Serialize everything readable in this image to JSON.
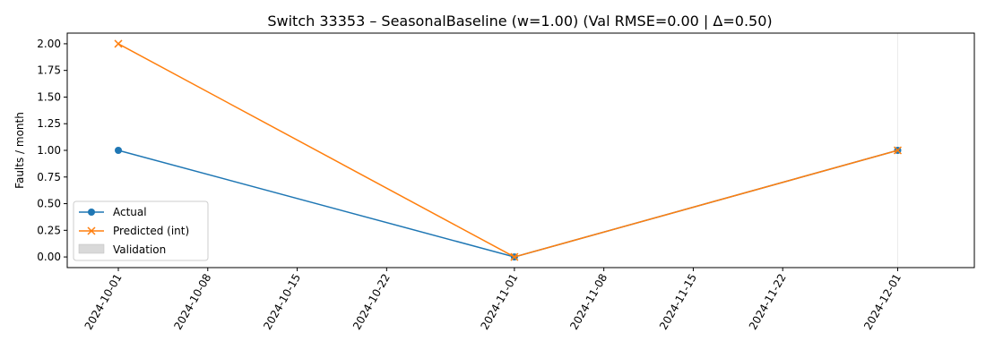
{
  "chart_data": {
    "type": "line",
    "title": "Switch 33353 – SeasonalBaseline (w=1.00) (Val RMSE=0.00 | Δ=0.50)",
    "xlabel": "",
    "ylabel": "Faults / month",
    "x_type": "date",
    "xlim": [
      "2024-09-27",
      "2024-12-07"
    ],
    "ylim": [
      -0.1,
      2.1
    ],
    "x_ticks": [
      "2024-10-01",
      "2024-10-08",
      "2024-10-15",
      "2024-10-22",
      "2024-11-01",
      "2024-11-08",
      "2024-11-15",
      "2024-11-22",
      "2024-12-01"
    ],
    "y_ticks": [
      "0.00",
      "0.25",
      "0.50",
      "0.75",
      "1.00",
      "1.25",
      "1.50",
      "1.75",
      "2.00"
    ],
    "grid": false,
    "legend_position": "lower-left",
    "series": [
      {
        "name": "Actual",
        "color": "#1f77b4",
        "marker": "circle",
        "points": [
          {
            "x": "2024-10-01",
            "y": 1.0
          },
          {
            "x": "2024-11-01",
            "y": 0.0
          },
          {
            "x": "2024-12-01",
            "y": 1.0
          }
        ]
      },
      {
        "name": "Predicted (int)",
        "color": "#ff7f0e",
        "marker": "x",
        "points": [
          {
            "x": "2024-10-01",
            "y": 2.0
          },
          {
            "x": "2024-11-01",
            "y": 0.0
          },
          {
            "x": "2024-12-01",
            "y": 1.0
          }
        ]
      }
    ],
    "validation": {
      "name": "Validation",
      "color": "#d9d9d9",
      "start": "2024-12-01",
      "end": "2024-12-01"
    }
  }
}
